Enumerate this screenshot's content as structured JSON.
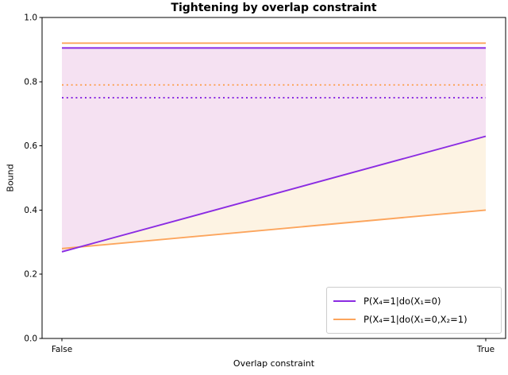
{
  "title": "Tightening by overlap constraint",
  "chart_data": {
    "type": "line",
    "title": "Tightening by overlap constraint",
    "xlabel": "Overlap constraint",
    "ylabel": "Bound",
    "categories": [
      "False",
      "True"
    ],
    "ylim": [
      0.0,
      1.0
    ],
    "yticks": [
      0.0,
      0.2,
      0.4,
      0.6,
      0.8,
      1.0
    ],
    "grid": false,
    "legend_position": "lower right",
    "series": [
      {
        "name": "P(X₄=1|do(X₁=0)",
        "color": "#8a2be2",
        "fill_color": "#f5e1f2",
        "upper_bound": [
          0.905,
          0.905
        ],
        "lower_bound": [
          0.27,
          0.63
        ],
        "dotted_reference": [
          0.75,
          0.75
        ]
      },
      {
        "name": "P(X₄=1|do(X₁=0,X₂=1)",
        "color": "#fca55d",
        "fill_color": "#fdf3e3",
        "upper_bound": [
          0.92,
          0.92
        ],
        "lower_bound": [
          0.28,
          0.4
        ],
        "dotted_reference": [
          0.79,
          0.79
        ]
      }
    ]
  }
}
